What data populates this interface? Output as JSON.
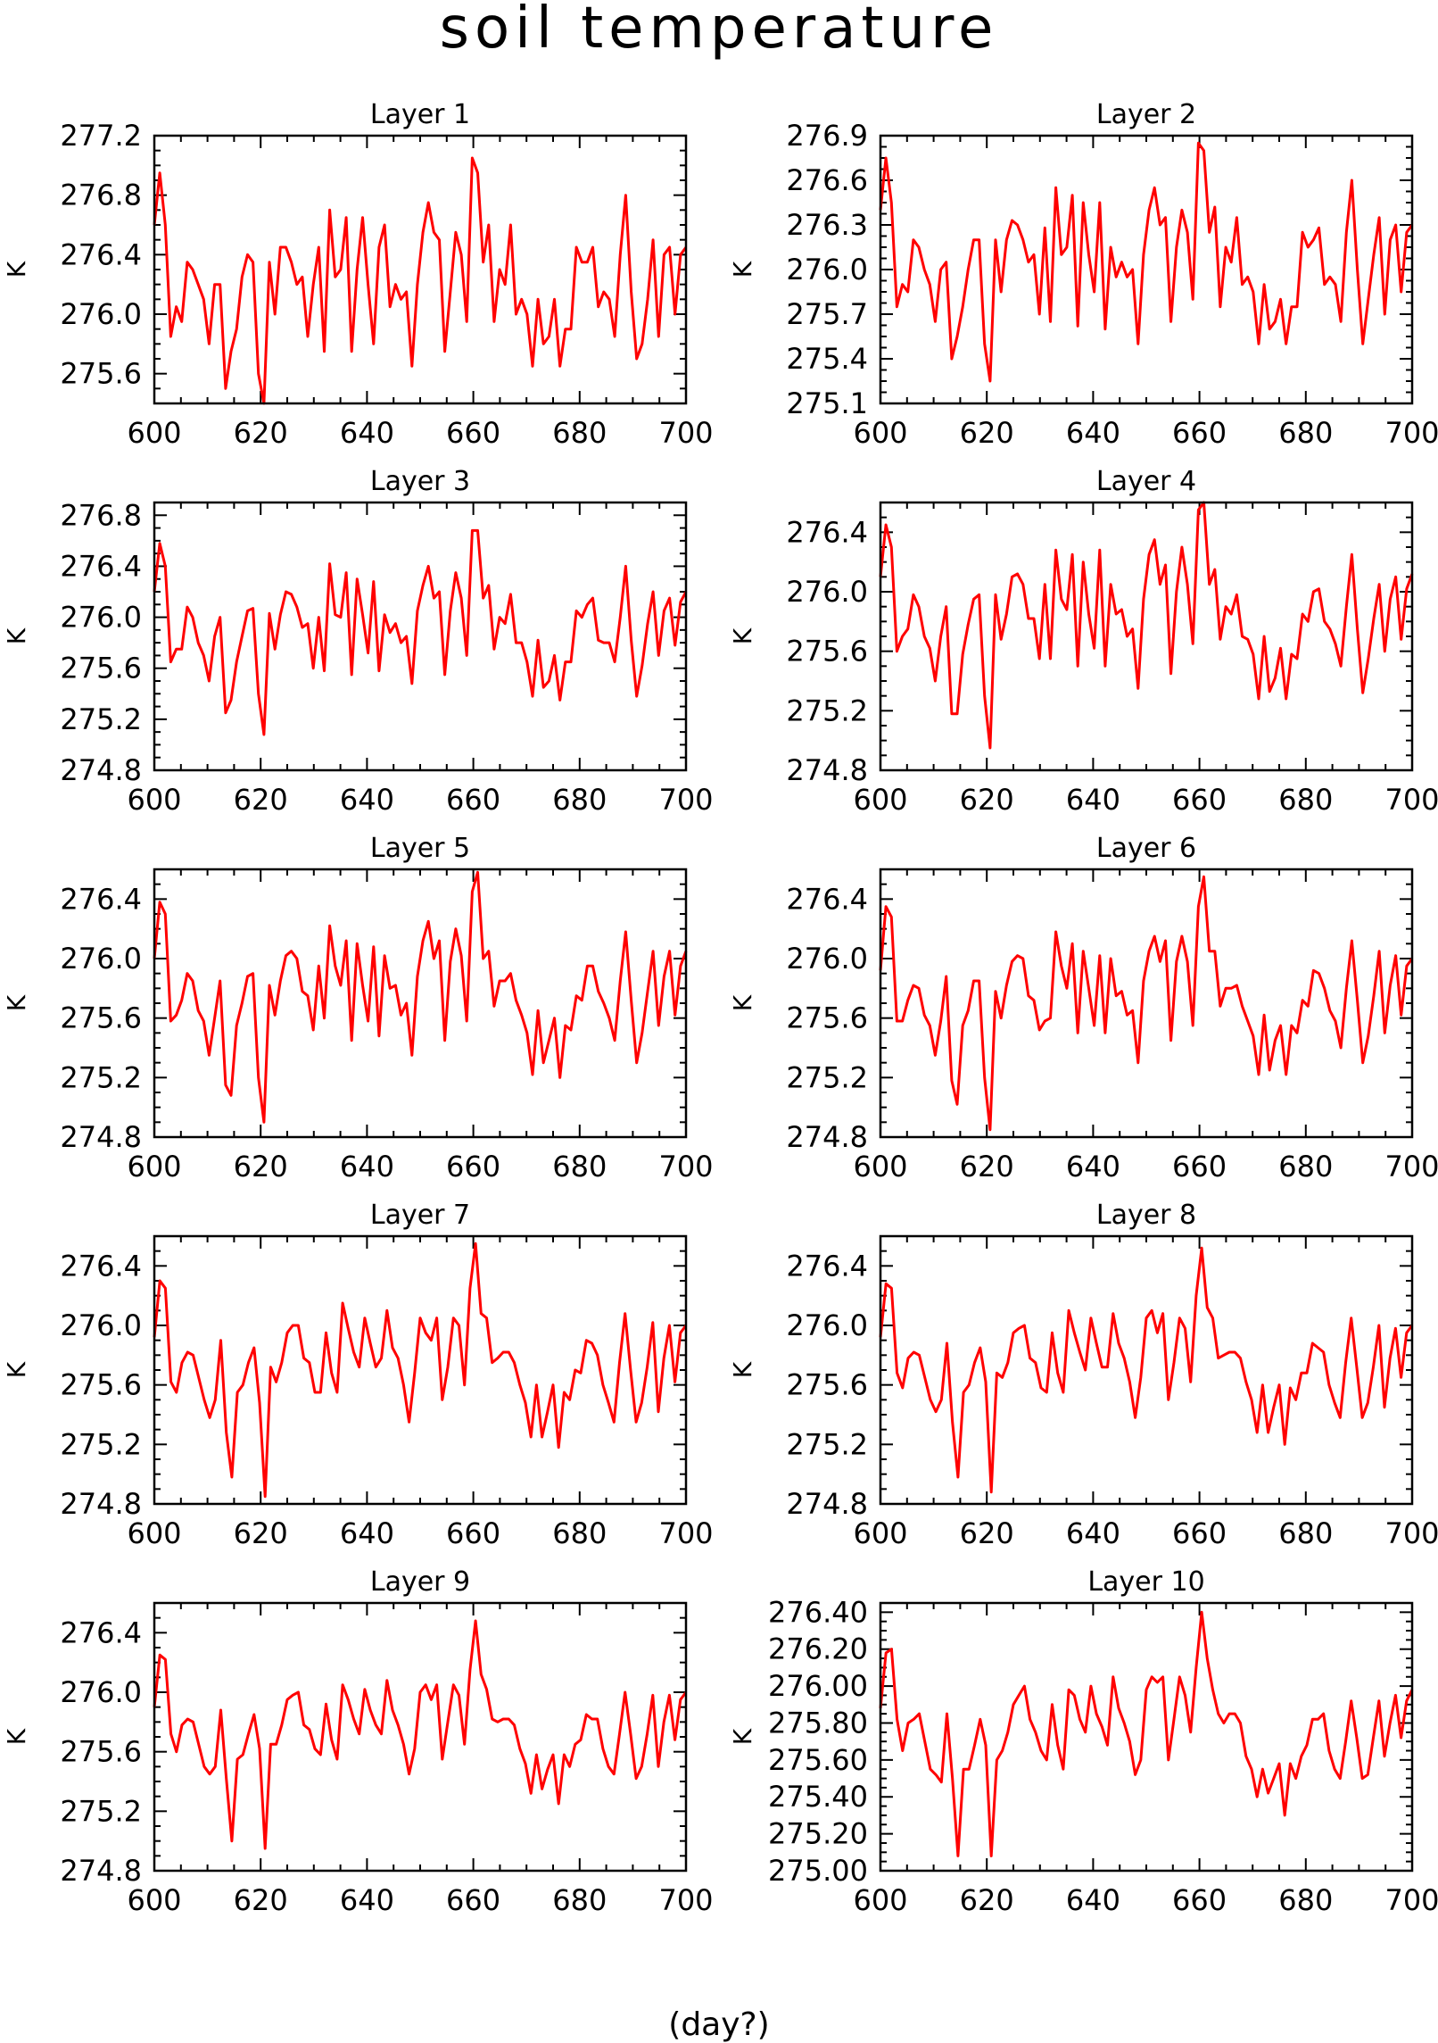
{
  "title": "soil temperature",
  "bottom_label": "(day?)",
  "line_color": "#ff0000",
  "chart_data": [
    {
      "type": "line",
      "title": "Layer 1",
      "ylabel": "K",
      "xlim": [
        600,
        700
      ],
      "ylim": [
        275.4,
        277.2
      ],
      "xticks": [
        "600",
        "620",
        "640",
        "660",
        "680",
        "700"
      ],
      "yticks": [
        "277.2",
        "276.8",
        "276.4",
        "276.0",
        "275.6"
      ],
      "y": [
        276.6,
        276.95,
        276.6,
        275.85,
        276.05,
        275.95,
        276.35,
        276.3,
        276.2,
        276.1,
        275.8,
        276.2,
        276.2,
        275.5,
        275.75,
        275.9,
        276.25,
        276.4,
        276.35,
        275.6,
        275.4,
        276.35,
        276.0,
        276.45,
        276.45,
        276.35,
        276.2,
        276.25,
        275.85,
        276.2,
        276.45,
        275.75,
        276.7,
        276.25,
        276.3,
        276.65,
        275.75,
        276.3,
        276.65,
        276.2,
        275.8,
        276.45,
        276.6,
        276.05,
        276.2,
        276.1,
        276.15,
        275.65,
        276.2,
        276.55,
        276.75,
        276.55,
        276.5,
        275.75,
        276.15,
        276.55,
        276.4,
        275.95,
        277.05,
        276.95,
        276.35,
        276.6,
        275.95,
        276.3,
        276.2,
        276.6,
        276.0,
        276.1,
        276.0,
        275.65,
        276.1,
        275.8,
        275.85,
        276.1,
        275.65,
        275.9,
        275.9,
        276.45,
        276.35,
        276.35,
        276.45,
        276.05,
        276.15,
        276.1,
        275.85,
        276.4,
        276.8,
        276.15,
        275.7,
        275.8,
        276.1,
        276.5,
        275.85,
        276.4,
        276.45,
        276.0,
        276.4,
        276.45
      ]
    },
    {
      "type": "line",
      "title": "Layer 2",
      "ylabel": "K",
      "xlim": [
        600,
        700
      ],
      "ylim": [
        275.1,
        276.9
      ],
      "xticks": [
        "600",
        "620",
        "640",
        "660",
        "680",
        "700"
      ],
      "yticks": [
        "276.9",
        "276.6",
        "276.3",
        "276.0",
        "275.7",
        "275.4",
        "275.1"
      ],
      "y": [
        276.4,
        276.75,
        276.45,
        275.75,
        275.9,
        275.85,
        276.2,
        276.15,
        276.0,
        275.9,
        275.65,
        276.0,
        276.05,
        275.4,
        275.55,
        275.75,
        276.0,
        276.2,
        276.2,
        275.5,
        275.25,
        276.2,
        275.85,
        276.2,
        276.33,
        276.3,
        276.2,
        276.05,
        276.1,
        275.7,
        276.28,
        275.65,
        276.55,
        276.1,
        276.15,
        276.5,
        275.62,
        276.45,
        276.1,
        275.85,
        276.45,
        275.6,
        276.15,
        275.95,
        276.05,
        275.95,
        276.0,
        275.5,
        276.1,
        276.4,
        276.55,
        276.3,
        276.35,
        275.65,
        276.15,
        276.4,
        276.25,
        275.8,
        276.85,
        276.8,
        276.25,
        276.42,
        275.75,
        276.15,
        276.05,
        276.35,
        275.9,
        275.95,
        275.85,
        275.5,
        275.9,
        275.6,
        275.65,
        275.8,
        275.5,
        275.75,
        275.75,
        276.25,
        276.15,
        276.2,
        276.28,
        275.9,
        275.95,
        275.9,
        275.65,
        276.25,
        276.6,
        276.0,
        275.5,
        275.8,
        276.1,
        276.35,
        275.7,
        276.2,
        276.3,
        275.85,
        276.25,
        276.3
      ]
    },
    {
      "type": "line",
      "title": "Layer 3",
      "ylabel": "K",
      "xlim": [
        600,
        700
      ],
      "ylim": [
        274.8,
        276.9
      ],
      "xticks": [
        "600",
        "620",
        "640",
        "660",
        "680",
        "700"
      ],
      "yticks": [
        "276.8",
        "276.4",
        "276.0",
        "275.6",
        "275.2",
        "274.8"
      ],
      "y": [
        276.2,
        276.58,
        276.4,
        275.65,
        275.75,
        275.75,
        276.08,
        276.0,
        275.8,
        275.7,
        275.5,
        275.85,
        276.0,
        275.25,
        275.35,
        275.65,
        275.85,
        276.05,
        276.07,
        275.4,
        275.08,
        276.03,
        275.75,
        276.02,
        276.2,
        276.18,
        276.08,
        275.92,
        275.95,
        275.6,
        276.0,
        275.58,
        276.42,
        276.02,
        276.0,
        276.35,
        275.55,
        276.3,
        276.02,
        275.72,
        276.28,
        275.58,
        276.02,
        275.88,
        275.95,
        275.8,
        275.85,
        275.48,
        276.05,
        276.25,
        276.4,
        276.15,
        276.2,
        275.55,
        276.05,
        276.35,
        276.15,
        275.7,
        276.68,
        276.68,
        276.15,
        276.25,
        275.75,
        276.0,
        275.95,
        276.18,
        275.8,
        275.8,
        275.65,
        275.38,
        275.82,
        275.45,
        275.5,
        275.7,
        275.35,
        275.65,
        275.65,
        276.05,
        276.0,
        276.1,
        276.15,
        275.82,
        275.8,
        275.8,
        275.65,
        276.0,
        276.4,
        275.82,
        275.38,
        275.62,
        275.95,
        276.2,
        275.7,
        276.05,
        276.15,
        275.78,
        276.12,
        276.2
      ]
    },
    {
      "type": "line",
      "title": "Layer 4",
      "ylabel": "K",
      "xlim": [
        600,
        700
      ],
      "ylim": [
        274.8,
        276.6
      ],
      "xticks": [
        "600",
        "620",
        "640",
        "660",
        "680",
        "700"
      ],
      "yticks": [
        "276.4",
        "276.0",
        "275.6",
        "275.2",
        "274.8"
      ],
      "y": [
        276.1,
        276.45,
        276.3,
        275.6,
        275.7,
        275.75,
        275.98,
        275.9,
        275.7,
        275.62,
        275.4,
        275.7,
        275.9,
        275.18,
        275.18,
        275.58,
        275.78,
        275.95,
        275.98,
        275.3,
        274.95,
        275.98,
        275.68,
        275.85,
        276.1,
        276.12,
        276.05,
        275.82,
        275.82,
        275.55,
        276.05,
        275.55,
        276.28,
        275.95,
        275.88,
        276.25,
        275.5,
        276.2,
        275.85,
        275.62,
        276.28,
        275.5,
        276.05,
        275.85,
        275.88,
        275.7,
        275.75,
        275.35,
        275.95,
        276.25,
        276.35,
        276.05,
        276.18,
        275.45,
        276.0,
        276.3,
        276.05,
        275.65,
        276.55,
        276.6,
        276.05,
        276.15,
        275.68,
        275.9,
        275.85,
        275.98,
        275.7,
        275.68,
        275.58,
        275.28,
        275.7,
        275.33,
        275.42,
        275.62,
        275.28,
        275.58,
        275.55,
        275.85,
        275.8,
        276.0,
        276.02,
        275.8,
        275.75,
        275.65,
        275.5,
        275.9,
        276.25,
        275.75,
        275.32,
        275.55,
        275.82,
        276.05,
        275.6,
        275.95,
        276.1,
        275.68,
        276.02,
        276.12
      ]
    },
    {
      "type": "line",
      "title": "Layer 5",
      "ylabel": "K",
      "xlim": [
        600,
        700
      ],
      "ylim": [
        274.8,
        276.6
      ],
      "xticks": [
        "600",
        "620",
        "640",
        "660",
        "680",
        "700"
      ],
      "yticks": [
        "276.4",
        "276.0",
        "275.6",
        "275.2",
        "274.8"
      ],
      "y": [
        276.0,
        276.38,
        276.3,
        275.58,
        275.62,
        275.72,
        275.9,
        275.85,
        275.65,
        275.58,
        275.35,
        275.6,
        275.85,
        275.15,
        275.08,
        275.55,
        275.7,
        275.88,
        275.9,
        275.2,
        274.9,
        275.82,
        275.62,
        275.85,
        276.02,
        276.05,
        276.0,
        275.78,
        275.75,
        275.52,
        275.95,
        275.6,
        276.22,
        275.95,
        275.82,
        276.12,
        275.45,
        276.1,
        275.82,
        275.58,
        276.08,
        275.48,
        276.02,
        275.8,
        275.82,
        275.62,
        275.7,
        275.35,
        275.88,
        276.12,
        276.25,
        276.0,
        276.12,
        275.45,
        275.98,
        276.2,
        276.02,
        275.58,
        276.45,
        276.58,
        276.0,
        276.05,
        275.68,
        275.85,
        275.85,
        275.9,
        275.72,
        275.62,
        275.5,
        275.22,
        275.65,
        275.3,
        275.45,
        275.6,
        275.2,
        275.55,
        275.52,
        275.75,
        275.72,
        275.95,
        275.95,
        275.78,
        275.7,
        275.6,
        275.45,
        275.85,
        276.18,
        275.72,
        275.3,
        275.5,
        275.78,
        276.05,
        275.55,
        275.88,
        276.05,
        275.62,
        275.95,
        276.05
      ]
    },
    {
      "type": "line",
      "title": "Layer 6",
      "ylabel": "K",
      "xlim": [
        600,
        700
      ],
      "ylim": [
        274.8,
        276.6
      ],
      "xticks": [
        "600",
        "620",
        "640",
        "660",
        "680",
        "700"
      ],
      "yticks": [
        "276.4",
        "276.0",
        "275.6",
        "275.2",
        "274.8"
      ],
      "y": [
        275.92,
        276.35,
        276.28,
        275.58,
        275.58,
        275.72,
        275.82,
        275.8,
        275.62,
        275.55,
        275.35,
        275.58,
        275.88,
        275.18,
        275.02,
        275.55,
        275.65,
        275.85,
        275.85,
        275.2,
        274.85,
        275.78,
        275.6,
        275.82,
        275.98,
        276.02,
        276.0,
        275.75,
        275.72,
        275.52,
        275.58,
        275.6,
        276.18,
        275.95,
        275.8,
        276.1,
        275.5,
        276.05,
        275.8,
        275.55,
        276.02,
        275.5,
        276.0,
        275.75,
        275.78,
        275.62,
        275.65,
        275.3,
        275.85,
        276.05,
        276.15,
        275.98,
        276.12,
        275.45,
        275.98,
        276.15,
        275.98,
        275.55,
        276.35,
        276.55,
        276.05,
        276.05,
        275.68,
        275.8,
        275.8,
        275.82,
        275.68,
        275.58,
        275.48,
        275.22,
        275.62,
        275.25,
        275.45,
        275.55,
        275.22,
        275.55,
        275.5,
        275.72,
        275.68,
        275.92,
        275.9,
        275.8,
        275.65,
        275.58,
        275.4,
        275.8,
        276.12,
        275.72,
        275.3,
        275.48,
        275.75,
        276.05,
        275.5,
        275.82,
        276.02,
        275.62,
        275.95,
        276.0
      ]
    },
    {
      "type": "line",
      "title": "Layer 7",
      "ylabel": "K",
      "xlim": [
        600,
        700
      ],
      "ylim": [
        274.8,
        276.6
      ],
      "xticks": [
        "600",
        "620",
        "640",
        "660",
        "680",
        "700"
      ],
      "yticks": [
        "276.4",
        "276.0",
        "275.6",
        "275.2",
        "274.8"
      ],
      "y": [
        275.92,
        276.3,
        276.25,
        275.62,
        275.55,
        275.75,
        275.82,
        275.8,
        275.65,
        275.5,
        275.38,
        275.5,
        275.9,
        275.28,
        274.98,
        275.55,
        275.6,
        275.75,
        275.85,
        275.48,
        274.85,
        275.72,
        275.62,
        275.75,
        275.95,
        276.0,
        276.0,
        275.78,
        275.75,
        275.55,
        275.55,
        275.95,
        275.68,
        275.55,
        276.15,
        275.98,
        275.82,
        275.72,
        276.05,
        275.88,
        275.72,
        275.78,
        276.1,
        275.85,
        275.78,
        275.6,
        275.35,
        275.68,
        276.05,
        275.95,
        275.9,
        276.05,
        275.5,
        275.72,
        276.05,
        276.0,
        275.6,
        276.25,
        276.55,
        276.08,
        276.05,
        275.75,
        275.78,
        275.82,
        275.82,
        275.75,
        275.6,
        275.48,
        275.25,
        275.6,
        275.25,
        275.42,
        275.6,
        275.18,
        275.55,
        275.5,
        275.7,
        275.68,
        275.9,
        275.88,
        275.8,
        275.6,
        275.48,
        275.35,
        275.75,
        276.08,
        275.7,
        275.35,
        275.48,
        275.72,
        276.02,
        275.42,
        275.78,
        276.0,
        275.62,
        275.95,
        276.0
      ]
    },
    {
      "type": "line",
      "title": "Layer 8",
      "ylabel": "K",
      "xlim": [
        600,
        700
      ],
      "ylim": [
        274.8,
        276.6
      ],
      "xticks": [
        "600",
        "620",
        "640",
        "660",
        "680",
        "700"
      ],
      "yticks": [
        "276.4",
        "276.0",
        "275.6",
        "275.2",
        "274.8"
      ],
      "y": [
        275.92,
        276.28,
        276.25,
        275.68,
        275.58,
        275.78,
        275.82,
        275.8,
        275.65,
        275.5,
        275.42,
        275.5,
        275.88,
        275.35,
        274.98,
        275.55,
        275.6,
        275.75,
        275.85,
        275.62,
        274.88,
        275.68,
        275.65,
        275.75,
        275.95,
        275.98,
        276.0,
        275.78,
        275.75,
        275.58,
        275.55,
        275.95,
        275.68,
        275.55,
        276.1,
        275.95,
        275.82,
        275.7,
        276.05,
        275.88,
        275.72,
        275.72,
        276.08,
        275.88,
        275.78,
        275.62,
        275.38,
        275.65,
        276.05,
        276.1,
        275.95,
        276.08,
        275.5,
        275.75,
        276.05,
        275.98,
        275.62,
        276.2,
        276.52,
        276.12,
        276.05,
        275.78,
        275.8,
        275.82,
        275.82,
        275.78,
        275.62,
        275.5,
        275.28,
        275.6,
        275.28,
        275.45,
        275.6,
        275.2,
        275.58,
        275.5,
        275.68,
        275.68,
        275.88,
        275.85,
        275.82,
        275.6,
        275.48,
        275.38,
        275.75,
        276.05,
        275.72,
        275.38,
        275.48,
        275.72,
        276.0,
        275.45,
        275.78,
        275.98,
        275.65,
        275.95,
        276.0
      ]
    },
    {
      "type": "line",
      "title": "Layer 9",
      "ylabel": "K",
      "xlim": [
        600,
        700
      ],
      "ylim": [
        274.8,
        276.6
      ],
      "xticks": [
        "600",
        "620",
        "640",
        "660",
        "680",
        "700"
      ],
      "yticks": [
        "276.4",
        "276.0",
        "275.6",
        "275.2",
        "274.8"
      ],
      "y": [
        275.9,
        276.25,
        276.22,
        275.72,
        275.6,
        275.78,
        275.82,
        275.8,
        275.65,
        275.5,
        275.45,
        275.5,
        275.88,
        275.42,
        275.0,
        275.55,
        275.58,
        275.72,
        275.85,
        275.62,
        274.95,
        275.65,
        275.65,
        275.78,
        275.95,
        275.98,
        276.0,
        275.78,
        275.75,
        275.62,
        275.58,
        275.92,
        275.68,
        275.55,
        276.05,
        275.95,
        275.82,
        275.72,
        276.02,
        275.88,
        275.78,
        275.72,
        276.08,
        275.88,
        275.78,
        275.65,
        275.45,
        275.62,
        276.0,
        276.05,
        275.95,
        276.05,
        275.55,
        275.8,
        276.05,
        275.98,
        275.65,
        276.15,
        276.48,
        276.12,
        276.02,
        275.82,
        275.8,
        275.82,
        275.82,
        275.78,
        275.62,
        275.52,
        275.32,
        275.58,
        275.35,
        275.48,
        275.58,
        275.25,
        275.58,
        275.5,
        275.65,
        275.68,
        275.85,
        275.82,
        275.82,
        275.62,
        275.5,
        275.45,
        275.72,
        276.0,
        275.72,
        275.42,
        275.5,
        275.72,
        275.98,
        275.5,
        275.8,
        275.98,
        275.68,
        275.95,
        276.0
      ]
    },
    {
      "type": "line",
      "title": "Layer 10",
      "ylabel": "K",
      "xlim": [
        600,
        700
      ],
      "ylim": [
        275.0,
        276.45
      ],
      "xticks": [
        "600",
        "620",
        "640",
        "660",
        "680",
        "700"
      ],
      "yticks": [
        "276.40",
        "276.20",
        "276.00",
        "275.80",
        "275.60",
        "275.40",
        "275.20",
        "275.00"
      ],
      "y": [
        275.88,
        276.18,
        276.2,
        275.82,
        275.65,
        275.8,
        275.82,
        275.85,
        275.7,
        275.55,
        275.52,
        275.48,
        275.85,
        275.5,
        275.08,
        275.55,
        275.55,
        275.68,
        275.82,
        275.68,
        275.08,
        275.6,
        275.65,
        275.75,
        275.9,
        275.95,
        276.0,
        275.82,
        275.75,
        275.65,
        275.6,
        275.9,
        275.68,
        275.55,
        275.98,
        275.95,
        275.82,
        275.75,
        276.0,
        275.85,
        275.78,
        275.68,
        276.05,
        275.88,
        275.8,
        275.7,
        275.52,
        275.6,
        275.98,
        276.05,
        276.02,
        276.05,
        275.6,
        275.82,
        276.05,
        275.95,
        275.75,
        276.1,
        276.4,
        276.15,
        275.98,
        275.85,
        275.8,
        275.85,
        275.85,
        275.8,
        275.62,
        275.55,
        275.4,
        275.55,
        275.42,
        275.5,
        275.58,
        275.3,
        275.58,
        275.5,
        275.62,
        275.68,
        275.82,
        275.82,
        275.85,
        275.65,
        275.55,
        275.5,
        275.7,
        275.92,
        275.72,
        275.5,
        275.52,
        275.72,
        275.92,
        275.62,
        275.8,
        275.95,
        275.72,
        275.92,
        275.98
      ]
    }
  ]
}
